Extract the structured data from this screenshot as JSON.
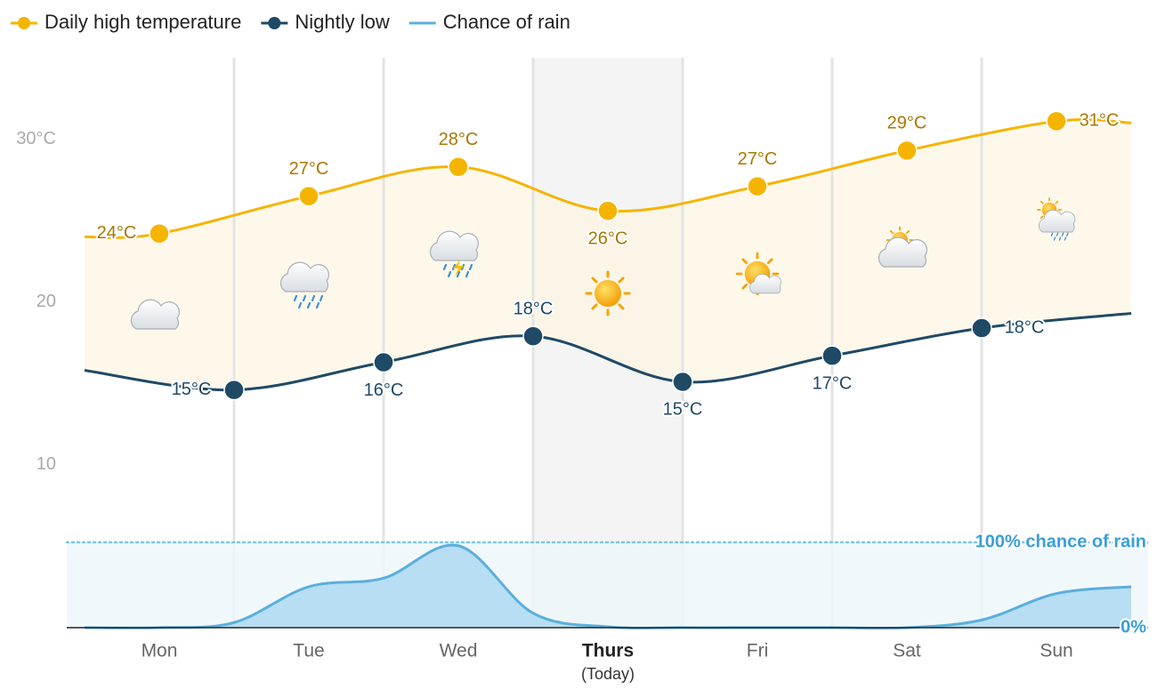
{
  "chart_data": {
    "type": "line",
    "legend_position": "top-left",
    "categories": [
      "Mon",
      "Tue",
      "Wed",
      "Thurs",
      "Fri",
      "Sat",
      "Sun"
    ],
    "highlight": {
      "category": 3,
      "label": "(Today)"
    },
    "xlim": [
      -0.5,
      6.5
    ],
    "xticks": [
      0.5,
      1.5,
      2.5,
      3.5,
      4.5,
      5.5
    ],
    "xgrid": true,
    "ylim": [
      0,
      35
    ],
    "yticks": [
      10,
      20,
      {
        "value": 30,
        "label": "30°C"
      }
    ],
    "y2lim": [
      0,
      668
    ],
    "y2ticks": [
      {
        "value": 0,
        "label": "0%"
      },
      {
        "value": 100,
        "label": "100% chance of rain"
      }
    ],
    "fill_between": {
      "series": [
        0,
        1
      ],
      "color": "#fdf6e4"
    },
    "series": [
      {
        "name": "Daily high temperature",
        "color": "#f5b400",
        "markers": true,
        "x": [
          -0.5,
          0,
          1,
          2,
          3,
          4,
          5,
          6,
          6.5
        ],
        "values": [
          24.0,
          24.2,
          26.5,
          28.3,
          25.6,
          27.1,
          29.3,
          31.1,
          31.0
        ],
        "value_labels": [
          null,
          "24°C",
          "27°C",
          "28°C",
          "26°C",
          "27°C",
          "29°C",
          "31°C",
          null
        ]
      },
      {
        "name": "Nightly low",
        "color": "#1f4a66",
        "markers": true,
        "x": [
          -0.5,
          0.5,
          1.5,
          2.5,
          3.5,
          4.5,
          5.5,
          6.5
        ],
        "values": [
          15.8,
          14.6,
          16.3,
          17.9,
          15.1,
          16.7,
          18.4,
          19.3
        ],
        "value_labels": [
          null,
          "15°C",
          "16°C",
          "18°C",
          "15°C",
          "17°C",
          "18°C",
          null
        ]
      },
      {
        "name": "Chance of rain",
        "color": "#5aafdb",
        "markers": false,
        "axis": "y2",
        "area": true,
        "x": [
          -0.5,
          0,
          0.5,
          1,
          1.5,
          2,
          2.5,
          3,
          3.5,
          4,
          4.5,
          5,
          5.5,
          6,
          6.5
        ],
        "values": [
          0,
          0,
          6,
          48,
          58,
          96,
          17,
          1,
          0,
          0,
          0,
          0,
          9,
          40,
          48
        ]
      }
    ]
  }
}
